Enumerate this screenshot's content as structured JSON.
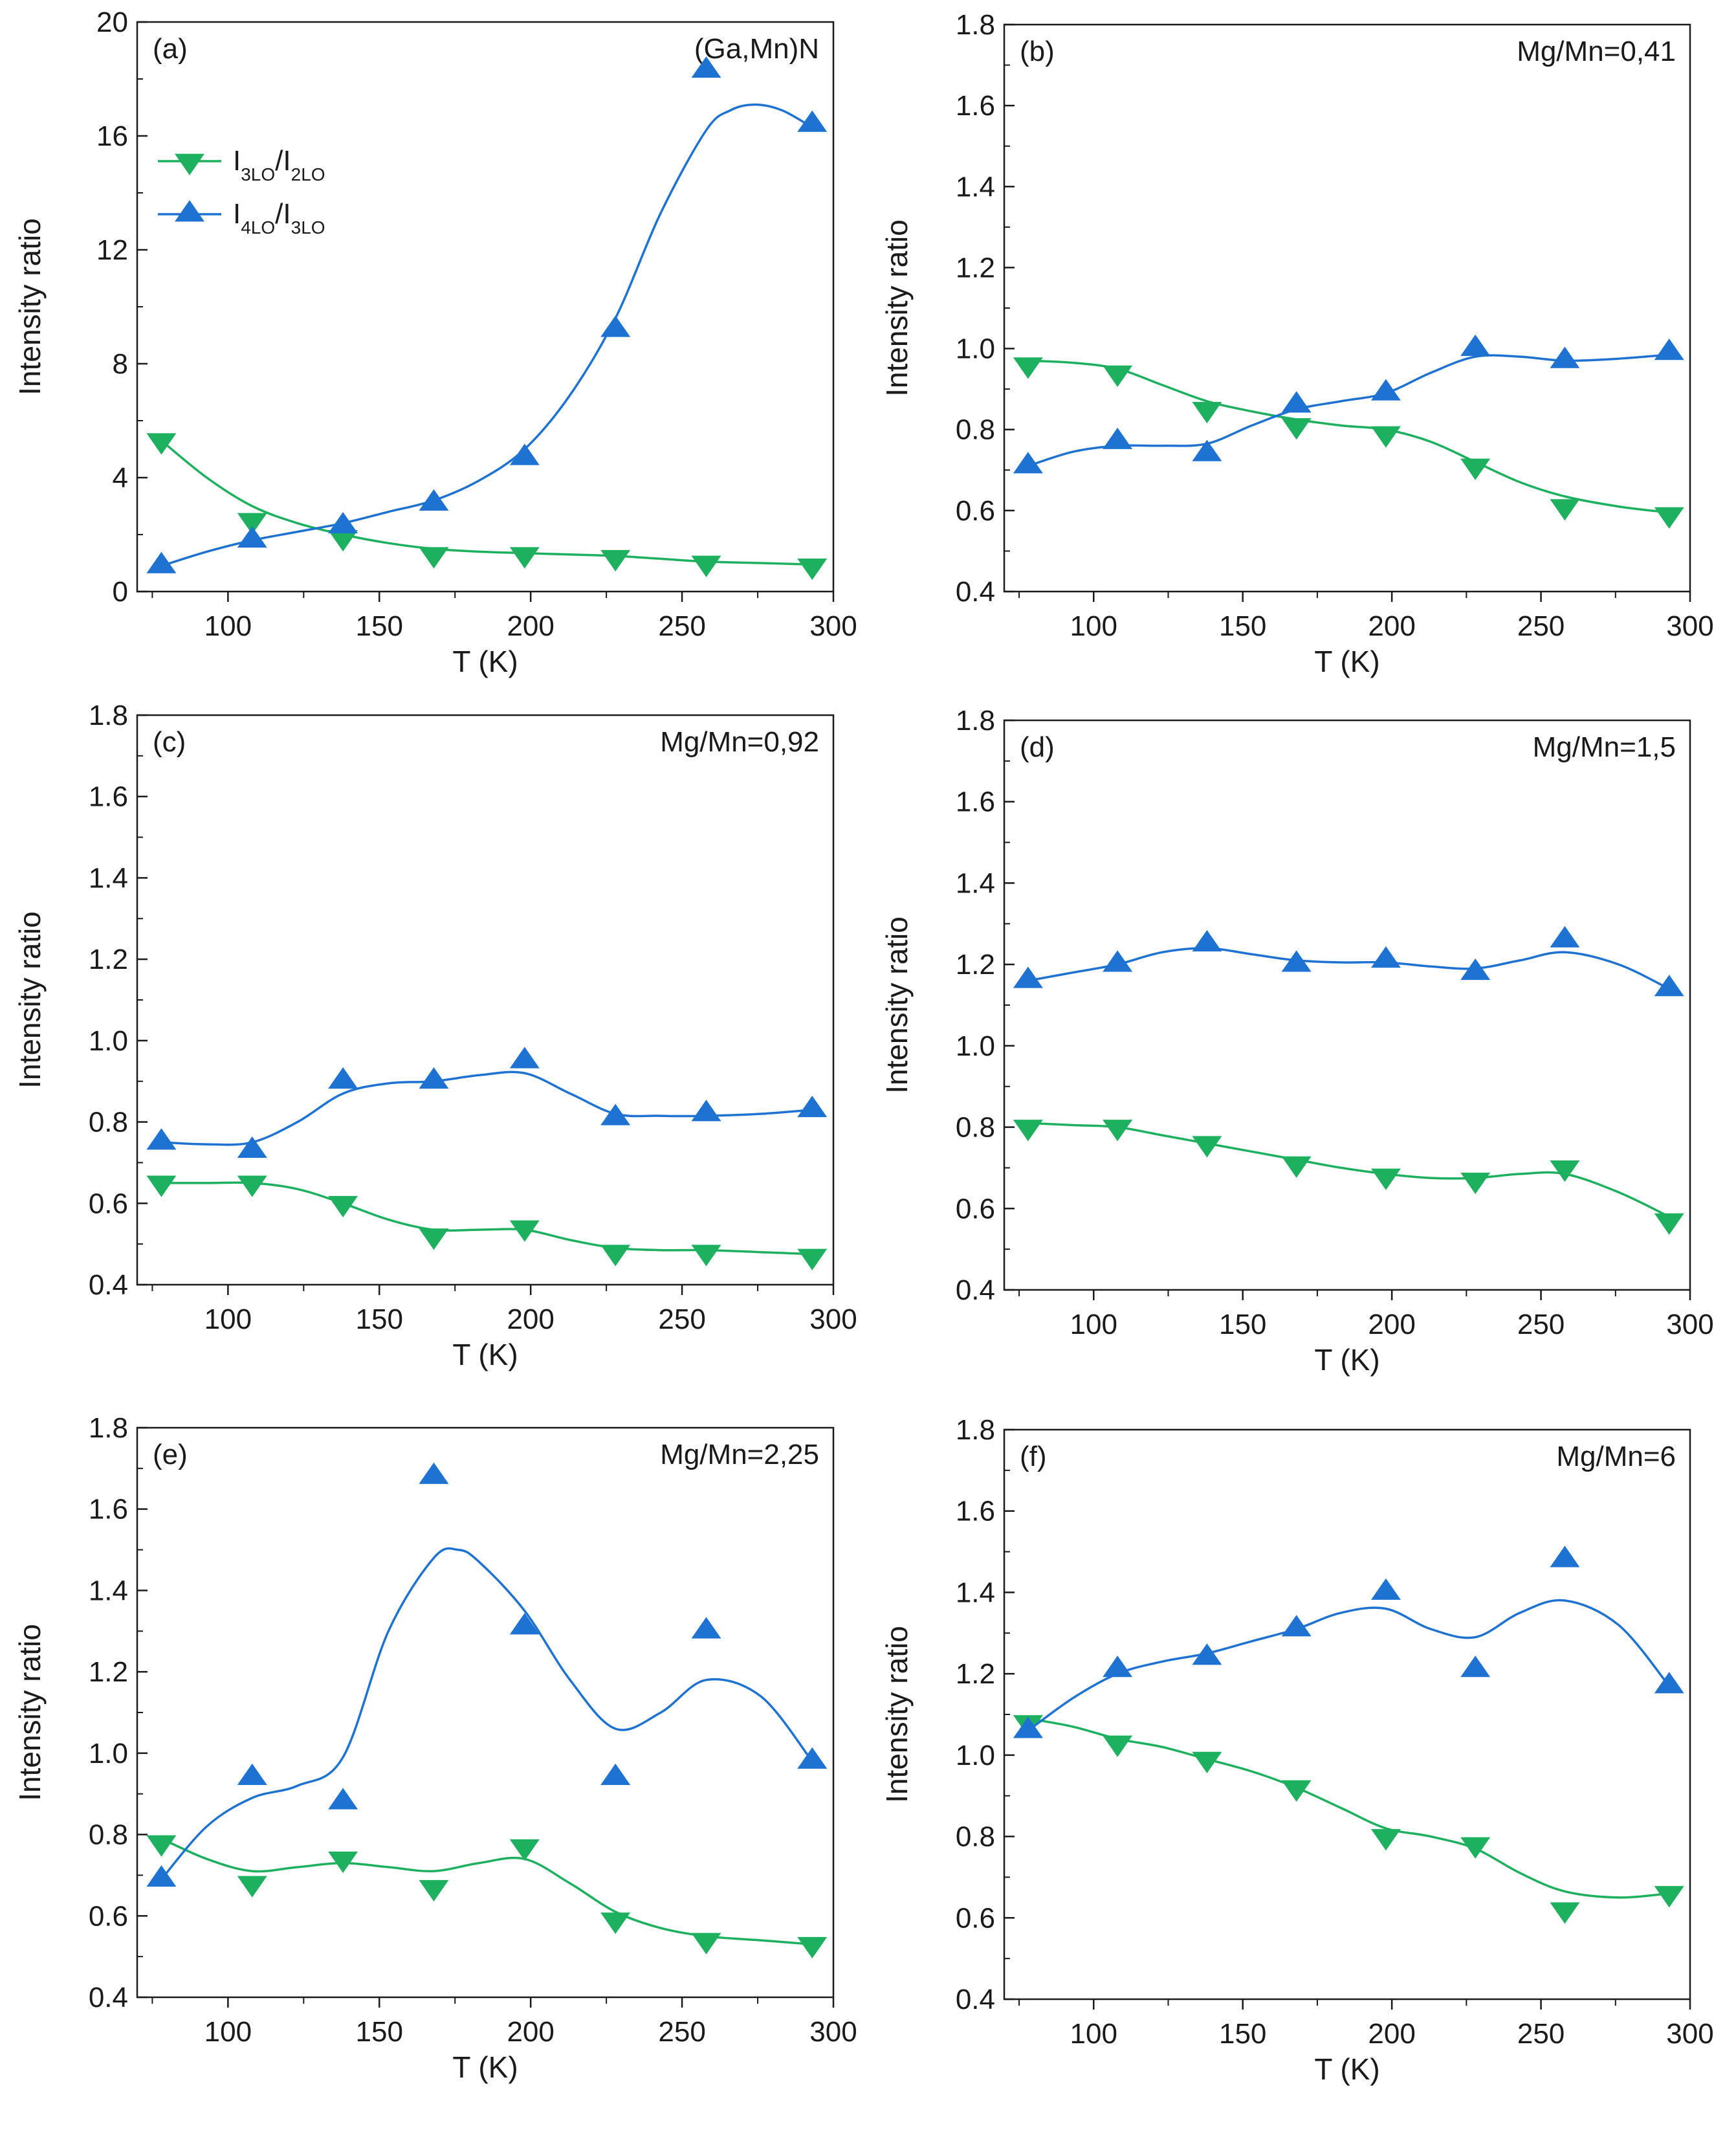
{
  "colors": {
    "green": "#1DB15F",
    "blue": "#1E73D2",
    "axis": "#1a1a1a"
  },
  "panels": [
    {
      "id": "a",
      "panel_label": "(a)",
      "annotation": "(Ga,Mn)N",
      "ylabel": "Intensity ratio",
      "xlabel": "T (K)",
      "ylim": [
        0,
        20
      ],
      "yticks": [
        0,
        4,
        8,
        12,
        16,
        20
      ],
      "ytick_labels": [
        "0",
        "4",
        "8",
        "12",
        "16",
        "20"
      ],
      "xlim": [
        70,
        300
      ],
      "xticks": [
        100,
        150,
        200,
        250,
        300
      ],
      "xtick_labels": [
        "100",
        "150",
        "200",
        "250",
        "300"
      ],
      "legend": [
        {
          "main": "I",
          "sub1": "3LO",
          "sep": "/I",
          "sub2": "2LO"
        },
        {
          "main": "I",
          "sub1": "4LO",
          "sep": "/I",
          "sub2": "3LO"
        }
      ]
    },
    {
      "id": "b",
      "panel_label": "(b)",
      "annotation": "Mg/Mn=0,41",
      "ylabel": "Intensity ratio",
      "xlabel": "T (K)",
      "ylim": [
        0.4,
        1.8
      ],
      "yticks": [
        0.4,
        0.6,
        0.8,
        1.0,
        1.2,
        1.4,
        1.6,
        1.8
      ],
      "ytick_labels": [
        "0.4",
        "0.6",
        "0.8",
        "1.0",
        "1.2",
        "1.4",
        "1.6",
        "1.8"
      ],
      "xlim": [
        70,
        300
      ],
      "xticks": [
        100,
        150,
        200,
        250,
        300
      ],
      "xtick_labels": [
        "100",
        "150",
        "200",
        "250",
        "300"
      ]
    },
    {
      "id": "c",
      "panel_label": "(c)",
      "annotation": "Mg/Mn=0,92",
      "ylabel": "Intensity ratio",
      "xlabel": "T (K)",
      "ylim": [
        0.4,
        1.8
      ],
      "yticks": [
        0.4,
        0.6,
        0.8,
        1.0,
        1.2,
        1.4,
        1.6,
        1.8
      ],
      "ytick_labels": [
        "0.4",
        "0.6",
        "0.8",
        "1.0",
        "1.2",
        "1.4",
        "1.6",
        "1.8"
      ],
      "xlim": [
        70,
        300
      ],
      "xticks": [
        100,
        150,
        200,
        250,
        300
      ],
      "xtick_labels": [
        "100",
        "150",
        "200",
        "250",
        "300"
      ]
    },
    {
      "id": "d",
      "panel_label": "(d)",
      "annotation": "Mg/Mn=1,5",
      "ylabel": "Intensity ratio",
      "xlabel": "T (K)",
      "ylim": [
        0.4,
        1.8
      ],
      "yticks": [
        0.4,
        0.6,
        0.8,
        1.0,
        1.2,
        1.4,
        1.6,
        1.8
      ],
      "ytick_labels": [
        "0.4",
        "0.6",
        "0.8",
        "1.0",
        "1.2",
        "1.4",
        "1.6",
        "1.8"
      ],
      "xlim": [
        70,
        300
      ],
      "xticks": [
        100,
        150,
        200,
        250,
        300
      ],
      "xtick_labels": [
        "100",
        "150",
        "200",
        "250",
        "300"
      ]
    },
    {
      "id": "e",
      "panel_label": "(e)",
      "annotation": "Mg/Mn=2,25",
      "ylabel": "Intensity ratio",
      "xlabel": "T (K)",
      "ylim": [
        0.4,
        1.8
      ],
      "yticks": [
        0.4,
        0.6,
        0.8,
        1.0,
        1.2,
        1.4,
        1.6,
        1.8
      ],
      "ytick_labels": [
        "0.4",
        "0.6",
        "0.8",
        "1.0",
        "1.2",
        "1.4",
        "1.6",
        "1.8"
      ],
      "xlim": [
        70,
        300
      ],
      "xticks": [
        100,
        150,
        200,
        250,
        300
      ],
      "xtick_labels": [
        "100",
        "150",
        "200",
        "250",
        "300"
      ]
    },
    {
      "id": "f",
      "panel_label": "(f)",
      "annotation": "Mg/Mn=6",
      "ylabel": "Intensity ratio",
      "xlabel": "T (K)",
      "ylim": [
        0.4,
        1.8
      ],
      "yticks": [
        0.4,
        0.6,
        0.8,
        1.0,
        1.2,
        1.4,
        1.6,
        1.8
      ],
      "ytick_labels": [
        "0.4",
        "0.6",
        "0.8",
        "1.0",
        "1.2",
        "1.4",
        "1.6",
        "1.8"
      ],
      "xlim": [
        70,
        300
      ],
      "xticks": [
        100,
        150,
        200,
        250,
        300
      ],
      "xtick_labels": [
        "100",
        "150",
        "200",
        "250",
        "300"
      ]
    }
  ],
  "chart_data": [
    {
      "type": "scatter",
      "panel": "(a)",
      "title": "(Ga,Mn)N",
      "xlabel": "T (K)",
      "ylabel": "Intensity ratio",
      "xlim": [
        70,
        300
      ],
      "ylim": [
        0,
        20
      ],
      "series": [
        {
          "name": "I3LO/I2LO",
          "marker": "triangle-down",
          "color": "green",
          "x": [
            78,
            108,
            138,
            168,
            198,
            228,
            258,
            293
          ],
          "y": [
            5.3,
            2.5,
            1.9,
            1.3,
            1.3,
            1.2,
            1.0,
            0.9
          ],
          "fit_x": [
            78,
            93,
            108,
            123,
            138,
            153,
            168,
            183,
            198,
            213,
            228,
            243,
            258,
            276,
            293
          ],
          "fit_y": [
            5.3,
            4.0,
            3.0,
            2.4,
            2.0,
            1.7,
            1.5,
            1.4,
            1.35,
            1.3,
            1.25,
            1.15,
            1.05,
            1.0,
            0.95
          ]
        },
        {
          "name": "I4LO/I3LO",
          "marker": "triangle-up",
          "color": "blue",
          "x": [
            78,
            108,
            138,
            168,
            198,
            228,
            258,
            293
          ],
          "y": [
            0.9,
            1.8,
            2.3,
            3.1,
            4.7,
            9.2,
            18.3,
            16.4
          ],
          "fit_x": [
            78,
            93,
            108,
            123,
            138,
            153,
            168,
            183,
            198,
            213,
            228,
            243,
            258,
            266,
            274,
            283,
            293
          ],
          "fit_y": [
            0.9,
            1.4,
            1.8,
            2.1,
            2.4,
            2.8,
            3.2,
            3.9,
            5.0,
            6.9,
            9.6,
            13.3,
            16.2,
            16.9,
            17.1,
            16.9,
            16.3
          ]
        }
      ]
    },
    {
      "type": "scatter",
      "panel": "(b)",
      "title": "Mg/Mn=0,41",
      "xlabel": "T (K)",
      "ylabel": "Intensity ratio",
      "xlim": [
        70,
        300
      ],
      "ylim": [
        0.4,
        1.8
      ],
      "series": [
        {
          "name": "I3LO/I2LO",
          "marker": "triangle-down",
          "color": "green",
          "x": [
            78,
            108,
            138,
            168,
            198,
            228,
            258,
            293
          ],
          "y": [
            0.96,
            0.94,
            0.85,
            0.81,
            0.79,
            0.71,
            0.61,
            0.59
          ],
          "fit_x": [
            78,
            93,
            108,
            123,
            138,
            153,
            168,
            183,
            198,
            213,
            228,
            243,
            258,
            276,
            293
          ],
          "fit_y": [
            0.97,
            0.965,
            0.95,
            0.91,
            0.87,
            0.845,
            0.825,
            0.81,
            0.8,
            0.77,
            0.72,
            0.67,
            0.635,
            0.61,
            0.595
          ]
        },
        {
          "name": "I4LO/I3LO",
          "marker": "triangle-up",
          "color": "blue",
          "x": [
            78,
            108,
            138,
            168,
            198,
            228,
            258,
            293
          ],
          "y": [
            0.71,
            0.77,
            0.74,
            0.86,
            0.89,
            1.0,
            0.97,
            0.99
          ],
          "fit_x": [
            78,
            93,
            108,
            123,
            138,
            153,
            168,
            183,
            198,
            213,
            228,
            243,
            258,
            276,
            293
          ],
          "fit_y": [
            0.71,
            0.745,
            0.76,
            0.76,
            0.765,
            0.81,
            0.85,
            0.87,
            0.89,
            0.94,
            0.98,
            0.98,
            0.97,
            0.975,
            0.985
          ]
        }
      ]
    },
    {
      "type": "scatter",
      "panel": "(c)",
      "title": "Mg/Mn=0,92",
      "xlabel": "T (K)",
      "ylabel": "Intensity ratio",
      "xlim": [
        70,
        300
      ],
      "ylim": [
        0.4,
        1.8
      ],
      "series": [
        {
          "name": "I3LO/I2LO",
          "marker": "triangle-down",
          "color": "green",
          "x": [
            78,
            108,
            138,
            168,
            198,
            228,
            258,
            293
          ],
          "y": [
            0.65,
            0.65,
            0.6,
            0.52,
            0.54,
            0.48,
            0.48,
            0.47
          ],
          "fit_x": [
            78,
            93,
            108,
            123,
            138,
            153,
            168,
            183,
            198,
            213,
            228,
            243,
            258,
            276,
            293
          ],
          "fit_y": [
            0.65,
            0.65,
            0.65,
            0.635,
            0.6,
            0.56,
            0.535,
            0.535,
            0.535,
            0.51,
            0.49,
            0.485,
            0.485,
            0.48,
            0.475
          ]
        },
        {
          "name": "I4LO/I3LO",
          "marker": "triangle-up",
          "color": "blue",
          "x": [
            78,
            108,
            138,
            168,
            198,
            228,
            258,
            293
          ],
          "y": [
            0.75,
            0.73,
            0.9,
            0.9,
            0.95,
            0.81,
            0.82,
            0.83
          ],
          "fit_x": [
            78,
            93,
            108,
            123,
            138,
            153,
            168,
            183,
            198,
            213,
            228,
            243,
            258,
            276,
            293
          ],
          "fit_y": [
            0.75,
            0.745,
            0.75,
            0.8,
            0.87,
            0.895,
            0.9,
            0.915,
            0.92,
            0.87,
            0.82,
            0.815,
            0.815,
            0.82,
            0.83
          ]
        }
      ]
    },
    {
      "type": "scatter",
      "panel": "(d)",
      "title": "Mg/Mn=1,5",
      "xlabel": "T (K)",
      "ylabel": "Intensity ratio",
      "xlim": [
        70,
        300
      ],
      "ylim": [
        0.4,
        1.8
      ],
      "series": [
        {
          "name": "I3LO/I2LO",
          "marker": "triangle-down",
          "color": "green",
          "x": [
            78,
            108,
            138,
            168,
            198,
            228,
            258,
            293
          ],
          "y": [
            0.8,
            0.8,
            0.76,
            0.71,
            0.68,
            0.67,
            0.7,
            0.57
          ],
          "fit_x": [
            78,
            93,
            108,
            123,
            138,
            153,
            168,
            183,
            198,
            213,
            228,
            243,
            258,
            276,
            293
          ],
          "fit_y": [
            0.81,
            0.805,
            0.8,
            0.78,
            0.76,
            0.74,
            0.72,
            0.7,
            0.685,
            0.675,
            0.675,
            0.685,
            0.685,
            0.64,
            0.58
          ]
        },
        {
          "name": "I4LO/I3LO",
          "marker": "triangle-up",
          "color": "blue",
          "x": [
            78,
            108,
            138,
            168,
            198,
            228,
            258,
            293
          ],
          "y": [
            1.16,
            1.2,
            1.25,
            1.2,
            1.21,
            1.18,
            1.26,
            1.14
          ],
          "fit_x": [
            78,
            93,
            108,
            123,
            138,
            153,
            168,
            183,
            198,
            213,
            228,
            243,
            258,
            276,
            293
          ],
          "fit_y": [
            1.16,
            1.18,
            1.2,
            1.23,
            1.24,
            1.225,
            1.21,
            1.205,
            1.205,
            1.195,
            1.19,
            1.21,
            1.23,
            1.2,
            1.14
          ]
        }
      ]
    },
    {
      "type": "scatter",
      "panel": "(e)",
      "title": "Mg/Mn=2,25",
      "xlabel": "T (K)",
      "ylabel": "Intensity ratio",
      "xlim": [
        70,
        300
      ],
      "ylim": [
        0.4,
        1.8
      ],
      "series": [
        {
          "name": "I3LO/I2LO",
          "marker": "triangle-down",
          "color": "green",
          "x": [
            78,
            108,
            138,
            168,
            198,
            228,
            258,
            293
          ],
          "y": [
            0.78,
            0.68,
            0.74,
            0.67,
            0.77,
            0.59,
            0.54,
            0.53
          ],
          "fit_x": [
            78,
            93,
            108,
            123,
            138,
            153,
            168,
            183,
            198,
            213,
            228,
            243,
            258,
            276,
            293
          ],
          "fit_y": [
            0.79,
            0.74,
            0.71,
            0.72,
            0.73,
            0.72,
            0.71,
            0.73,
            0.74,
            0.68,
            0.61,
            0.57,
            0.55,
            0.54,
            0.53
          ]
        },
        {
          "name": "I4LO/I3LO",
          "marker": "triangle-up",
          "color": "blue",
          "x": [
            78,
            108,
            138,
            168,
            198,
            228,
            258,
            293
          ],
          "y": [
            0.69,
            0.94,
            0.88,
            1.68,
            1.31,
            0.94,
            1.3,
            0.98
          ],
          "fit_x": [
            78,
            93,
            108,
            123,
            138,
            153,
            168,
            176,
            183,
            198,
            213,
            228,
            243,
            258,
            276,
            293
          ],
          "fit_y": [
            0.69,
            0.82,
            0.89,
            0.92,
            0.99,
            1.3,
            1.48,
            1.5,
            1.47,
            1.35,
            1.18,
            1.06,
            1.1,
            1.18,
            1.14,
            0.98
          ]
        }
      ]
    },
    {
      "type": "scatter",
      "panel": "(f)",
      "title": "Mg/Mn=6",
      "xlabel": "T (K)",
      "ylabel": "Intensity ratio",
      "xlim": [
        70,
        300
      ],
      "ylim": [
        0.4,
        1.8
      ],
      "series": [
        {
          "name": "I3LO/I2LO",
          "marker": "triangle-down",
          "color": "green",
          "x": [
            78,
            108,
            138,
            168,
            198,
            228,
            258,
            293
          ],
          "y": [
            1.08,
            1.03,
            0.99,
            0.92,
            0.8,
            0.78,
            0.62,
            0.66
          ],
          "fit_x": [
            78,
            93,
            108,
            123,
            138,
            153,
            168,
            183,
            198,
            213,
            228,
            243,
            258,
            276,
            293
          ],
          "fit_y": [
            1.09,
            1.07,
            1.04,
            1.02,
            0.99,
            0.96,
            0.92,
            0.87,
            0.82,
            0.8,
            0.77,
            0.71,
            0.665,
            0.65,
            0.66
          ]
        },
        {
          "name": "I4LO/I3LO",
          "marker": "triangle-up",
          "color": "blue",
          "x": [
            78,
            108,
            138,
            168,
            198,
            228,
            258,
            293
          ],
          "y": [
            1.06,
            1.21,
            1.24,
            1.31,
            1.4,
            1.21,
            1.48,
            1.17
          ],
          "fit_x": [
            78,
            93,
            108,
            123,
            138,
            153,
            168,
            183,
            198,
            213,
            228,
            243,
            258,
            276,
            293
          ],
          "fit_y": [
            1.06,
            1.14,
            1.2,
            1.23,
            1.25,
            1.28,
            1.31,
            1.35,
            1.36,
            1.31,
            1.29,
            1.35,
            1.38,
            1.32,
            1.17
          ]
        }
      ]
    }
  ]
}
